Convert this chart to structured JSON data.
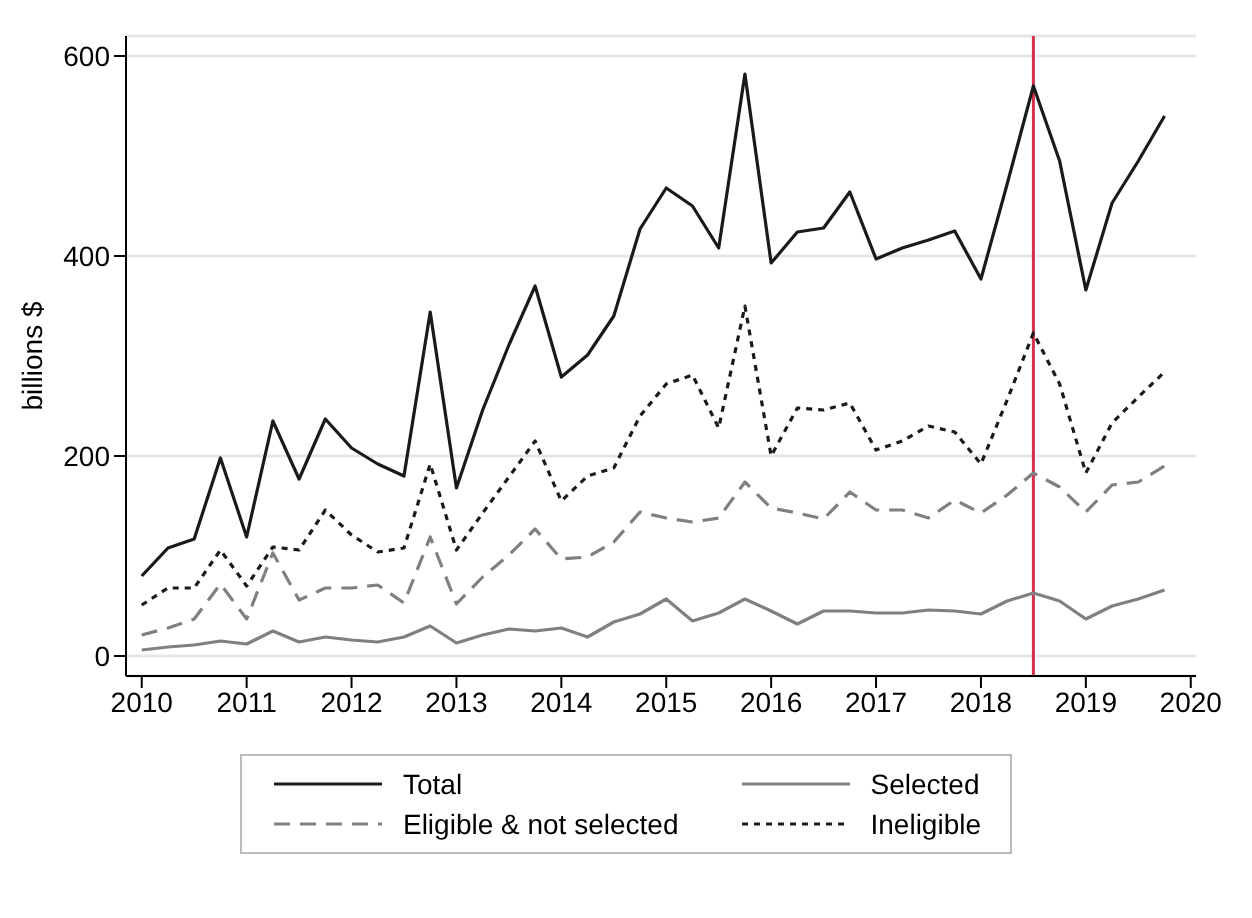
{
  "chart_data": {
    "type": "line",
    "ylabel": "billions $",
    "x": [
      2010,
      2010.25,
      2010.5,
      2010.75,
      2011,
      2011.25,
      2011.5,
      2011.75,
      2012,
      2012.25,
      2012.5,
      2012.75,
      2013,
      2013.25,
      2013.5,
      2013.75,
      2014,
      2014.25,
      2014.5,
      2014.75,
      2015,
      2015.25,
      2015.5,
      2015.75,
      2016,
      2016.25,
      2016.5,
      2016.75,
      2017,
      2017.25,
      2017.5,
      2017.75,
      2018,
      2018.25,
      2018.5,
      2018.75,
      2019,
      2019.25,
      2019.5,
      2019.75
    ],
    "series": [
      {
        "name": "Total",
        "color": "#1a1a1a",
        "line_style": "solid",
        "values": [
          80,
          108,
          117,
          198,
          119,
          235,
          177,
          237,
          208,
          192,
          180,
          344,
          168,
          246,
          311,
          370,
          279,
          301,
          340,
          427,
          468,
          450,
          408,
          582,
          393,
          424,
          428,
          464,
          397,
          408,
          416,
          425,
          377,
          472,
          570,
          495,
          366,
          453,
          495,
          540
        ]
      },
      {
        "name": "Selected",
        "color": "#808080",
        "line_style": "solid",
        "values": [
          6,
          9,
          11,
          15,
          12,
          25,
          14,
          19,
          16,
          14,
          19,
          30,
          13,
          21,
          27,
          25,
          28,
          19,
          34,
          42,
          57,
          35,
          43,
          57,
          45,
          32,
          45,
          45,
          43,
          43,
          46,
          45,
          42,
          55,
          63,
          55,
          37,
          50,
          57,
          66
        ]
      },
      {
        "name": "Eligible & not selected",
        "color": "#808080",
        "line_style": "dashed",
        "values": [
          21,
          28,
          37,
          72,
          37,
          103,
          56,
          68,
          68,
          71,
          53,
          119,
          52,
          79,
          101,
          127,
          97,
          99,
          114,
          144,
          138,
          134,
          138,
          174,
          148,
          143,
          137,
          164,
          146,
          146,
          138,
          156,
          143,
          161,
          183,
          169,
          144,
          171,
          174,
          190
        ]
      },
      {
        "name": "Ineligible",
        "color": "#1a1a1a",
        "line_style": "dotted",
        "values": [
          51,
          68,
          68,
          106,
          70,
          109,
          106,
          146,
          121,
          104,
          108,
          192,
          106,
          143,
          179,
          215,
          155,
          180,
          188,
          240,
          272,
          281,
          228,
          350,
          200,
          248,
          246,
          253,
          206,
          215,
          230,
          224,
          192,
          256,
          323,
          272,
          183,
          233,
          259,
          284
        ]
      }
    ],
    "xlim": [
      2009.85,
      2020.05
    ],
    "xticks": [
      2010,
      2011,
      2012,
      2013,
      2014,
      2015,
      2016,
      2017,
      2018,
      2019,
      2020
    ],
    "ylim": [
      -20,
      620
    ],
    "yticks": [
      0,
      200,
      400,
      600
    ],
    "grid": "y",
    "legend": "bottom",
    "marker": "none",
    "ref_lines": [
      {
        "axis": "x",
        "value": 2018.5,
        "color": "#d6304f"
      }
    ]
  }
}
